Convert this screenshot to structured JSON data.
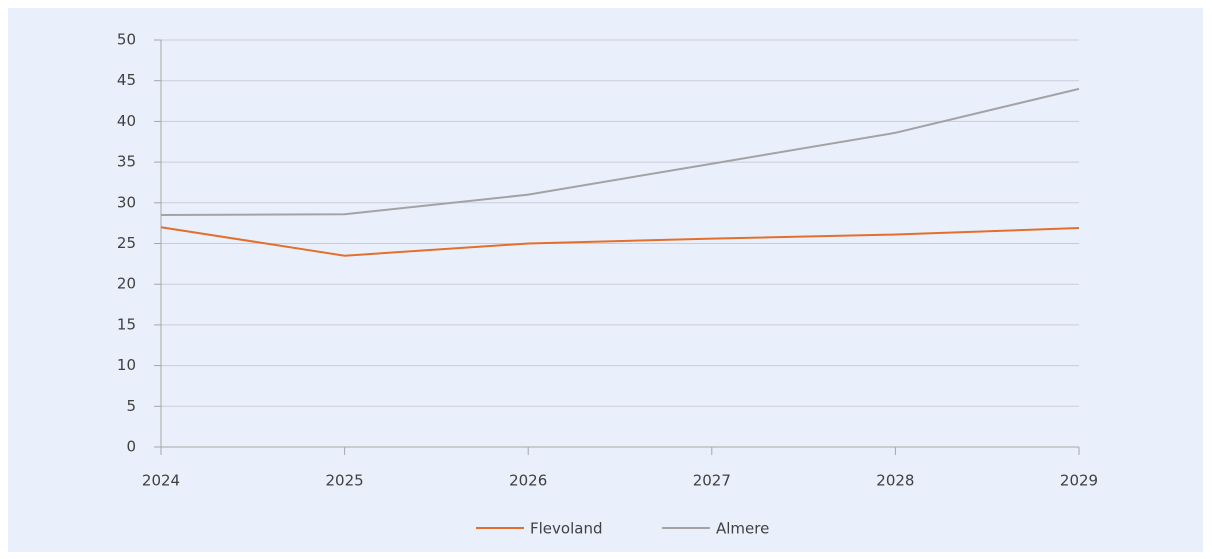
{
  "chart_data": {
    "type": "line",
    "x": [
      2024,
      2025,
      2026,
      2027,
      2028,
      2029
    ],
    "xlim": [
      2024,
      2029
    ],
    "xticks": [
      2024,
      2025,
      2026,
      2027,
      2028,
      2029
    ],
    "ylim": [
      0,
      50
    ],
    "yticks": [
      0,
      5,
      10,
      15,
      20,
      25,
      30,
      35,
      40,
      45,
      50
    ],
    "grid": true,
    "legend": "bottom",
    "series": [
      {
        "name": "Flevoland",
        "color": "#e2702c",
        "values": [
          27.0,
          23.5,
          25.0,
          25.6,
          26.1,
          26.9
        ]
      },
      {
        "name": "Almere",
        "color": "#a3a3a3",
        "values": [
          28.5,
          28.6,
          31.0,
          34.8,
          38.6,
          44.0
        ]
      }
    ]
  }
}
